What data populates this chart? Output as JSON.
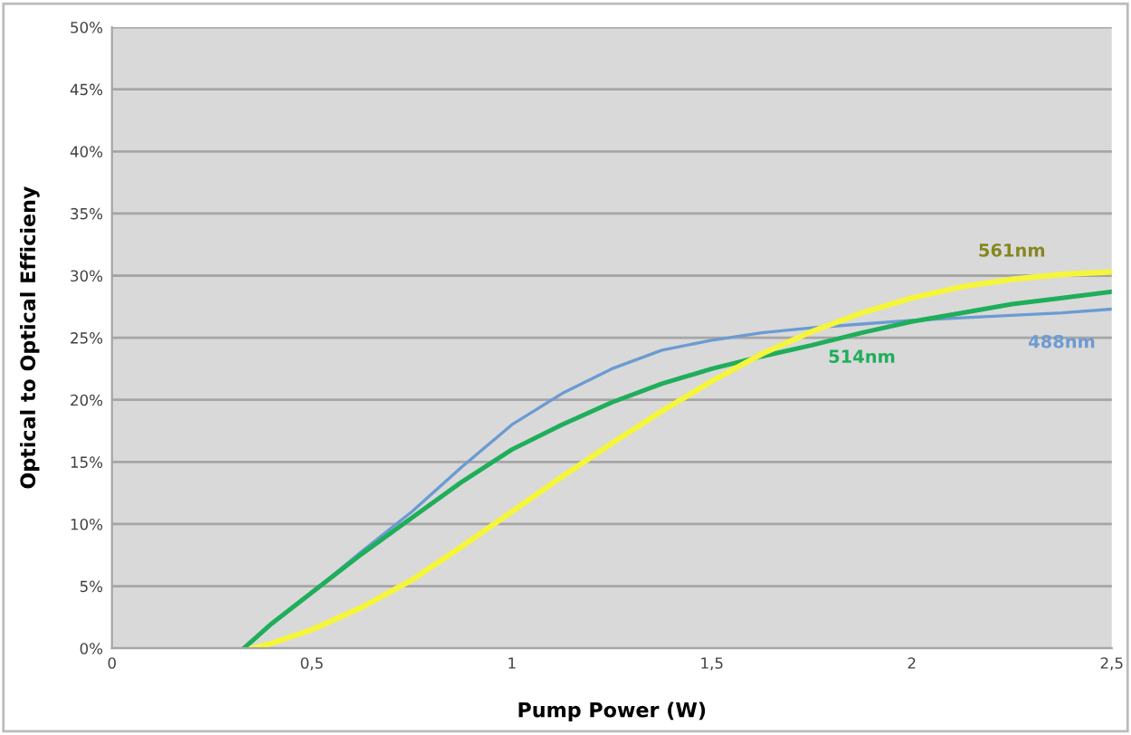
{
  "chart_data": {
    "type": "line",
    "xlabel": "Pump Power (W)",
    "ylabel": "Optical to Optical Efficieny",
    "xlim": [
      0,
      2.5
    ],
    "xticks": [
      0,
      {
        "value": 0.5,
        "label": "0,5"
      },
      1,
      {
        "value": 1.5,
        "label": "1,5"
      },
      2,
      {
        "value": 2.5,
        "label": "2,5"
      }
    ],
    "ylim": [
      0,
      50
    ],
    "yticks": [
      {
        "value": 0,
        "label": "0%"
      },
      {
        "value": 5,
        "label": "5%"
      },
      {
        "value": 10,
        "label": "10%"
      },
      {
        "value": 15,
        "label": "15%"
      },
      {
        "value": 20,
        "label": "20%"
      },
      {
        "value": 25,
        "label": "25%"
      },
      {
        "value": 30,
        "label": "30%"
      },
      {
        "value": 35,
        "label": "35%"
      },
      {
        "value": 40,
        "label": "40%"
      },
      {
        "value": 45,
        "label": "45%"
      },
      {
        "value": 50,
        "label": "50%"
      }
    ],
    "grid": "y",
    "marker": "none",
    "line_style": "solid",
    "series": [
      {
        "name": "488nm",
        "color": "#6b9bd2",
        "x": [
          0.33,
          0.4,
          0.5,
          0.625,
          0.75,
          0.875,
          1,
          1.125,
          1.25,
          1.375,
          1.5,
          1.625,
          1.75,
          1.875,
          2,
          2.125,
          2.25,
          2.375,
          2.5
        ],
        "values": [
          0,
          2,
          4.5,
          7.8,
          11,
          14.6,
          18,
          20.5,
          22.5,
          24,
          24.8,
          25.4,
          25.8,
          26.1,
          26.4,
          26.6,
          26.8,
          27,
          27.3
        ]
      },
      {
        "name": "514nm",
        "color": "#1fae5a",
        "x": [
          0.33,
          0.4,
          0.5,
          0.625,
          0.75,
          0.875,
          1,
          1.125,
          1.25,
          1.375,
          1.5,
          1.625,
          1.75,
          1.875,
          2,
          2.125,
          2.25,
          2.375,
          2.5
        ],
        "values": [
          0,
          2,
          4.5,
          7.6,
          10.5,
          13.4,
          16,
          18,
          19.8,
          21.3,
          22.5,
          23.5,
          24.4,
          25.4,
          26.3,
          27,
          27.7,
          28.2,
          28.7
        ]
      },
      {
        "name": "561nm",
        "color": "#f5f53c",
        "x": [
          0.35,
          0.4,
          0.5,
          0.625,
          0.75,
          0.875,
          1,
          1.125,
          1.25,
          1.375,
          1.5,
          1.625,
          1.75,
          1.875,
          2,
          2.125,
          2.25,
          2.375,
          2.5
        ],
        "values": [
          0,
          0.4,
          1.5,
          3.3,
          5.5,
          8.2,
          11,
          13.8,
          16.5,
          19.1,
          21.5,
          23.7,
          25.5,
          27,
          28.2,
          29.1,
          29.7,
          30.1,
          30.3
        ]
      }
    ]
  }
}
